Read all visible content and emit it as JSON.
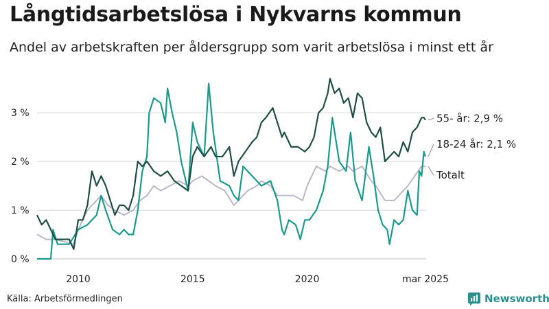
{
  "header": {
    "title": "Långtidsarbetslösa i Nykvarns kommun",
    "subtitle": "Andel av arbetskraften per åldersgrupp som varit arbetslösa i minst ett år"
  },
  "footer": {
    "source": "Källa: Arbetsförmedlingen",
    "brand": "Newsworthy"
  },
  "colors": {
    "s55": "#1f4d45",
    "s1824": "#1a9a8a",
    "total": "#b8b8c8",
    "grid": "#d6d6d6",
    "brand": "#2a8f8f"
  },
  "chart_data": {
    "type": "line",
    "title": "Långtidsarbetslösa i Nykvarns kommun",
    "subtitle": "Andel av arbetskraften per åldersgrupp som varit arbetslösa i minst ett år",
    "xlim": [
      2008.2,
      2025.2
    ],
    "ylim": [
      0,
      3.75
    ],
    "y_ticks": [
      {
        "value": 0,
        "label": "0 %"
      },
      {
        "value": 1,
        "label": "1 %"
      },
      {
        "value": 2,
        "label": "2 %"
      },
      {
        "value": 3,
        "label": "3 %"
      }
    ],
    "x_ticks": [
      {
        "value": 2010,
        "label": "2010"
      },
      {
        "value": 2015,
        "label": "2015"
      },
      {
        "value": 2020,
        "label": "2020"
      },
      {
        "value": 2025.17,
        "label": "mar 2025"
      }
    ],
    "grid": "horizontal",
    "series": [
      {
        "key": "total",
        "name": "Totalt",
        "end_label": "Totalt",
        "points": [
          [
            2008.2,
            0.5
          ],
          [
            2008.6,
            0.4
          ],
          [
            2009.0,
            0.4
          ],
          [
            2009.4,
            0.35
          ],
          [
            2009.8,
            0.3
          ],
          [
            2010.0,
            0.6
          ],
          [
            2010.4,
            1.0
          ],
          [
            2010.8,
            1.2
          ],
          [
            2011.0,
            1.3
          ],
          [
            2011.3,
            1.1
          ],
          [
            2011.6,
            1.0
          ],
          [
            2012.0,
            0.9
          ],
          [
            2012.4,
            1.0
          ],
          [
            2012.7,
            1.2
          ],
          [
            2013.0,
            1.3
          ],
          [
            2013.3,
            1.5
          ],
          [
            2013.6,
            1.4
          ],
          [
            2014.0,
            1.5
          ],
          [
            2014.4,
            1.6
          ],
          [
            2014.8,
            1.5
          ],
          [
            2015.0,
            1.6
          ],
          [
            2015.4,
            1.7
          ],
          [
            2015.7,
            1.6
          ],
          [
            2016.0,
            1.5
          ],
          [
            2016.4,
            1.4
          ],
          [
            2016.8,
            1.1
          ],
          [
            2017.0,
            1.2
          ],
          [
            2017.4,
            1.4
          ],
          [
            2017.8,
            1.5
          ],
          [
            2018.0,
            1.6
          ],
          [
            2018.4,
            1.5
          ],
          [
            2018.7,
            1.3
          ],
          [
            2019.0,
            1.3
          ],
          [
            2019.4,
            1.3
          ],
          [
            2019.8,
            1.2
          ],
          [
            2020.0,
            1.5
          ],
          [
            2020.4,
            1.9
          ],
          [
            2020.8,
            1.8
          ],
          [
            2021.0,
            1.9
          ],
          [
            2021.4,
            1.8
          ],
          [
            2021.8,
            1.9
          ],
          [
            2022.0,
            1.8
          ],
          [
            2022.4,
            1.9
          ],
          [
            2022.8,
            1.6
          ],
          [
            2023.0,
            1.5
          ],
          [
            2023.4,
            1.2
          ],
          [
            2023.8,
            1.2
          ],
          [
            2024.0,
            1.3
          ],
          [
            2024.4,
            1.5
          ],
          [
            2024.7,
            1.7
          ],
          [
            2025.0,
            1.9
          ],
          [
            2025.17,
            1.9
          ]
        ]
      },
      {
        "key": "s1824",
        "name": "18-24 år",
        "end_label": "18-24 år: 2,1 %",
        "points": [
          [
            2008.2,
            0.0
          ],
          [
            2008.6,
            0.0
          ],
          [
            2008.8,
            0.0
          ],
          [
            2008.9,
            0.6
          ],
          [
            2009.1,
            0.3
          ],
          [
            2009.6,
            0.3
          ],
          [
            2010.0,
            0.6
          ],
          [
            2010.4,
            0.7
          ],
          [
            2010.8,
            0.9
          ],
          [
            2011.0,
            1.3
          ],
          [
            2011.2,
            1.0
          ],
          [
            2011.5,
            0.6
          ],
          [
            2011.8,
            0.5
          ],
          [
            2012.0,
            0.6
          ],
          [
            2012.2,
            0.5
          ],
          [
            2012.4,
            0.5
          ],
          [
            2012.6,
            1.0
          ],
          [
            2012.8,
            1.8
          ],
          [
            2013.0,
            2.1
          ],
          [
            2013.1,
            3.0
          ],
          [
            2013.3,
            3.3
          ],
          [
            2013.6,
            3.2
          ],
          [
            2013.8,
            2.8
          ],
          [
            2013.9,
            3.5
          ],
          [
            2014.1,
            3.0
          ],
          [
            2014.3,
            2.6
          ],
          [
            2014.5,
            2.0
          ],
          [
            2014.8,
            1.4
          ],
          [
            2015.0,
            2.8
          ],
          [
            2015.2,
            2.4
          ],
          [
            2015.5,
            2.1
          ],
          [
            2015.7,
            3.6
          ],
          [
            2015.9,
            2.6
          ],
          [
            2016.2,
            1.6
          ],
          [
            2016.6,
            1.5
          ],
          [
            2016.8,
            1.3
          ],
          [
            2017.0,
            1.2
          ],
          [
            2017.2,
            1.9
          ],
          [
            2017.4,
            1.8
          ],
          [
            2017.8,
            1.6
          ],
          [
            2018.0,
            1.5
          ],
          [
            2018.4,
            1.6
          ],
          [
            2018.7,
            1.2
          ],
          [
            2018.9,
            0.6
          ],
          [
            2019.0,
            0.5
          ],
          [
            2019.2,
            0.8
          ],
          [
            2019.5,
            0.7
          ],
          [
            2019.7,
            0.4
          ],
          [
            2019.9,
            0.8
          ],
          [
            2020.1,
            0.8
          ],
          [
            2020.4,
            1.0
          ],
          [
            2020.7,
            1.4
          ],
          [
            2020.9,
            1.9
          ],
          [
            2021.1,
            2.9
          ],
          [
            2021.4,
            2.0
          ],
          [
            2021.7,
            1.8
          ],
          [
            2021.9,
            2.6
          ],
          [
            2022.1,
            1.6
          ],
          [
            2022.4,
            1.2
          ],
          [
            2022.7,
            2.3
          ],
          [
            2022.9,
            1.7
          ],
          [
            2023.1,
            1.0
          ],
          [
            2023.3,
            0.7
          ],
          [
            2023.5,
            0.6
          ],
          [
            2023.6,
            0.3
          ],
          [
            2023.8,
            0.8
          ],
          [
            2024.0,
            0.7
          ],
          [
            2024.2,
            0.8
          ],
          [
            2024.4,
            1.4
          ],
          [
            2024.6,
            1.0
          ],
          [
            2024.8,
            0.9
          ],
          [
            2024.9,
            1.8
          ],
          [
            2025.0,
            1.7
          ],
          [
            2025.1,
            2.2
          ],
          [
            2025.17,
            2.1
          ]
        ]
      },
      {
        "key": "s55",
        "name": "55- år",
        "end_label": "55- år: 2,9 %",
        "points": [
          [
            2008.2,
            0.9
          ],
          [
            2008.4,
            0.7
          ],
          [
            2008.6,
            0.8
          ],
          [
            2008.8,
            0.6
          ],
          [
            2009.0,
            0.4
          ],
          [
            2009.3,
            0.4
          ],
          [
            2009.6,
            0.4
          ],
          [
            2009.8,
            0.2
          ],
          [
            2010.0,
            0.8
          ],
          [
            2010.2,
            0.8
          ],
          [
            2010.4,
            1.1
          ],
          [
            2010.6,
            1.8
          ],
          [
            2010.8,
            1.5
          ],
          [
            2011.0,
            1.7
          ],
          [
            2011.2,
            1.5
          ],
          [
            2011.4,
            1.2
          ],
          [
            2011.6,
            0.9
          ],
          [
            2011.8,
            1.1
          ],
          [
            2012.0,
            1.1
          ],
          [
            2012.2,
            1.0
          ],
          [
            2012.4,
            1.3
          ],
          [
            2012.6,
            2.0
          ],
          [
            2012.8,
            1.9
          ],
          [
            2013.0,
            2.0
          ],
          [
            2013.3,
            1.8
          ],
          [
            2013.6,
            1.7
          ],
          [
            2013.9,
            1.8
          ],
          [
            2014.2,
            1.6
          ],
          [
            2014.5,
            1.5
          ],
          [
            2014.8,
            1.4
          ],
          [
            2015.0,
            2.1
          ],
          [
            2015.2,
            2.3
          ],
          [
            2015.5,
            2.1
          ],
          [
            2015.8,
            2.3
          ],
          [
            2016.0,
            2.1
          ],
          [
            2016.3,
            2.1
          ],
          [
            2016.6,
            2.3
          ],
          [
            2016.8,
            1.7
          ],
          [
            2017.0,
            2.0
          ],
          [
            2017.3,
            2.2
          ],
          [
            2017.6,
            2.4
          ],
          [
            2017.8,
            2.5
          ],
          [
            2018.0,
            2.8
          ],
          [
            2018.2,
            2.9
          ],
          [
            2018.5,
            3.1
          ],
          [
            2018.7,
            2.8
          ],
          [
            2018.9,
            2.5
          ],
          [
            2019.0,
            2.6
          ],
          [
            2019.3,
            2.3
          ],
          [
            2019.6,
            2.3
          ],
          [
            2019.9,
            2.2
          ],
          [
            2020.1,
            2.3
          ],
          [
            2020.3,
            2.5
          ],
          [
            2020.5,
            3.0
          ],
          [
            2020.7,
            3.1
          ],
          [
            2020.9,
            3.4
          ],
          [
            2021.0,
            3.7
          ],
          [
            2021.2,
            3.4
          ],
          [
            2021.4,
            3.5
          ],
          [
            2021.6,
            3.2
          ],
          [
            2021.8,
            3.3
          ],
          [
            2022.0,
            2.9
          ],
          [
            2022.2,
            3.4
          ],
          [
            2022.4,
            3.3
          ],
          [
            2022.6,
            2.8
          ],
          [
            2022.8,
            2.6
          ],
          [
            2023.0,
            2.5
          ],
          [
            2023.2,
            2.7
          ],
          [
            2023.4,
            2.0
          ],
          [
            2023.6,
            2.1
          ],
          [
            2023.8,
            2.2
          ],
          [
            2024.0,
            2.1
          ],
          [
            2024.2,
            2.4
          ],
          [
            2024.4,
            2.2
          ],
          [
            2024.6,
            2.6
          ],
          [
            2024.8,
            2.7
          ],
          [
            2025.0,
            2.9
          ],
          [
            2025.1,
            2.9
          ],
          [
            2025.17,
            2.85
          ]
        ]
      }
    ]
  }
}
